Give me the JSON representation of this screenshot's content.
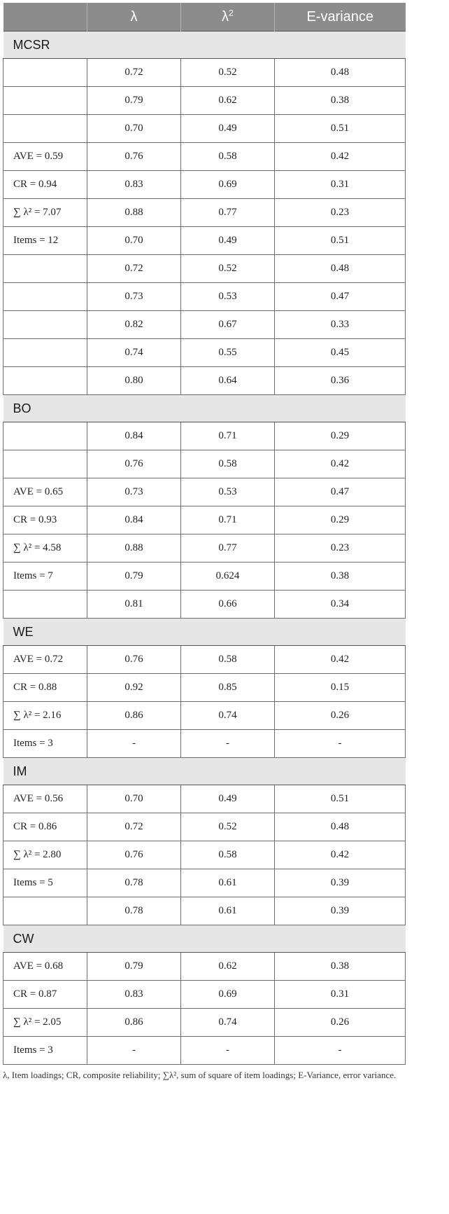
{
  "header": {
    "col1": "",
    "col2": "λ",
    "col3_base": "λ",
    "col3_sup": "2",
    "col4": "E-variance"
  },
  "sections": [
    {
      "name": "MCSR",
      "rows": [
        {
          "label": "",
          "lambda": "0.72",
          "lambda_sq": "0.52",
          "evar": "0.48"
        },
        {
          "label": "",
          "lambda": "0.79",
          "lambda_sq": "0.62",
          "evar": "0.38"
        },
        {
          "label": "",
          "lambda": "0.70",
          "lambda_sq": "0.49",
          "evar": "0.51"
        },
        {
          "label": "AVE = 0.59",
          "lambda": "0.76",
          "lambda_sq": "0.58",
          "evar": "0.42"
        },
        {
          "label": "CR = 0.94",
          "lambda": "0.83",
          "lambda_sq": "0.69",
          "evar": "0.31"
        },
        {
          "label": "∑ λ² = 7.07",
          "lambda": "0.88",
          "lambda_sq": "0.77",
          "evar": "0.23"
        },
        {
          "label": "Items = 12",
          "lambda": "0.70",
          "lambda_sq": "0.49",
          "evar": "0.51"
        },
        {
          "label": "",
          "lambda": "0.72",
          "lambda_sq": "0.52",
          "evar": "0.48"
        },
        {
          "label": "",
          "lambda": "0.73",
          "lambda_sq": "0.53",
          "evar": "0.47"
        },
        {
          "label": "",
          "lambda": "0.82",
          "lambda_sq": "0.67",
          "evar": "0.33"
        },
        {
          "label": "",
          "lambda": "0.74",
          "lambda_sq": "0.55",
          "evar": "0.45"
        },
        {
          "label": "",
          "lambda": "0.80",
          "lambda_sq": "0.64",
          "evar": "0.36"
        }
      ]
    },
    {
      "name": "BO",
      "rows": [
        {
          "label": "",
          "lambda": "0.84",
          "lambda_sq": "0.71",
          "evar": "0.29"
        },
        {
          "label": "",
          "lambda": "0.76",
          "lambda_sq": "0.58",
          "evar": "0.42"
        },
        {
          "label": "AVE = 0.65",
          "lambda": "0.73",
          "lambda_sq": "0.53",
          "evar": "0.47"
        },
        {
          "label": "CR = 0.93",
          "lambda": "0.84",
          "lambda_sq": "0.71",
          "evar": "0.29"
        },
        {
          "label": "∑ λ² = 4.58",
          "lambda": "0.88",
          "lambda_sq": "0.77",
          "evar": "0.23"
        },
        {
          "label": "Items = 7",
          "lambda": "0.79",
          "lambda_sq": "0.624",
          "evar": "0.38"
        },
        {
          "label": "",
          "lambda": "0.81",
          "lambda_sq": "0.66",
          "evar": "0.34"
        }
      ]
    },
    {
      "name": "WE",
      "rows": [
        {
          "label": "AVE = 0.72",
          "lambda": "0.76",
          "lambda_sq": "0.58",
          "evar": "0.42"
        },
        {
          "label": "CR = 0.88",
          "lambda": "0.92",
          "lambda_sq": "0.85",
          "evar": "0.15"
        },
        {
          "label": "∑ λ² = 2.16",
          "lambda": "0.86",
          "lambda_sq": "0.74",
          "evar": "0.26"
        },
        {
          "label": "Items = 3",
          "lambda": "-",
          "lambda_sq": "-",
          "evar": "-"
        }
      ]
    },
    {
      "name": "IM",
      "rows": [
        {
          "label": "AVE = 0.56",
          "lambda": "0.70",
          "lambda_sq": "0.49",
          "evar": "0.51"
        },
        {
          "label": "CR = 0.86",
          "lambda": "0.72",
          "lambda_sq": "0.52",
          "evar": "0.48"
        },
        {
          "label": "∑ λ² = 2.80",
          "lambda": "0.76",
          "lambda_sq": "0.58",
          "evar": "0.42"
        },
        {
          "label": "Items = 5",
          "lambda": "0.78",
          "lambda_sq": "0.61",
          "evar": "0.39"
        },
        {
          "label": "",
          "lambda": "0.78",
          "lambda_sq": "0.61",
          "evar": "0.39"
        }
      ]
    },
    {
      "name": "CW",
      "rows": [
        {
          "label": "AVE = 0.68",
          "lambda": "0.79",
          "lambda_sq": "0.62",
          "evar": "0.38"
        },
        {
          "label": "CR = 0.87",
          "lambda": "0.83",
          "lambda_sq": "0.69",
          "evar": "0.31"
        },
        {
          "label": "∑ λ² = 2.05",
          "lambda": "0.86",
          "lambda_sq": "0.74",
          "evar": "0.26"
        },
        {
          "label": "Items = 3",
          "lambda": "-",
          "lambda_sq": "-",
          "evar": "-"
        }
      ]
    }
  ],
  "footnote": "λ, Item loadings; CR, composite reliability; ∑λ², sum of square of item loadings; E-Variance, error variance."
}
